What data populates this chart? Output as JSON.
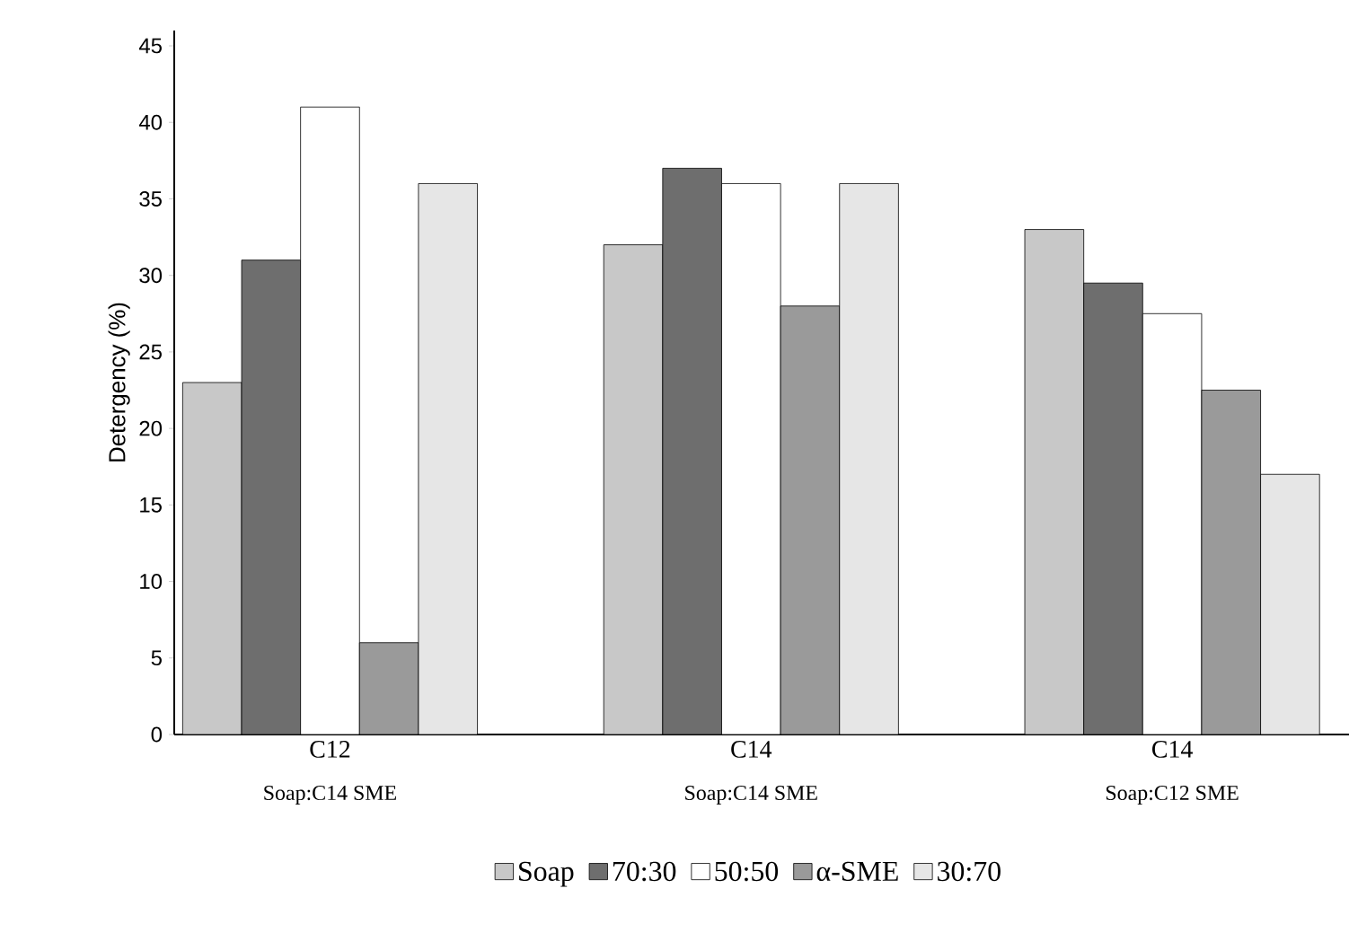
{
  "chart_data": {
    "type": "bar",
    "ylabel": "Detergency (%)",
    "categories": [
      "C12",
      "C14",
      "C14"
    ],
    "annotations": [
      "Soap:C14 SME",
      "Soap:C14 SME",
      "Soap:C12 SME"
    ],
    "series": [
      {
        "name": "Soap",
        "color": "#c8c8c8",
        "values": [
          23,
          32,
          33
        ]
      },
      {
        "name": "70:30",
        "color": "#6e6e6e",
        "values": [
          31,
          37,
          29.5
        ]
      },
      {
        "name": "50:50",
        "color": "#ffffff",
        "values": [
          41,
          36,
          27.5
        ]
      },
      {
        "name": "α-SME",
        "color": "#9a9a9a",
        "values": [
          6,
          28,
          22.5
        ]
      },
      {
        "name": "30:70",
        "color": "#e6e6e6",
        "values": [
          36,
          36,
          17
        ]
      }
    ],
    "ylim": [
      0,
      46
    ],
    "yticks": [
      0,
      5,
      10,
      15,
      20,
      25,
      30,
      35,
      40,
      45
    ],
    "legend": "bottom"
  }
}
